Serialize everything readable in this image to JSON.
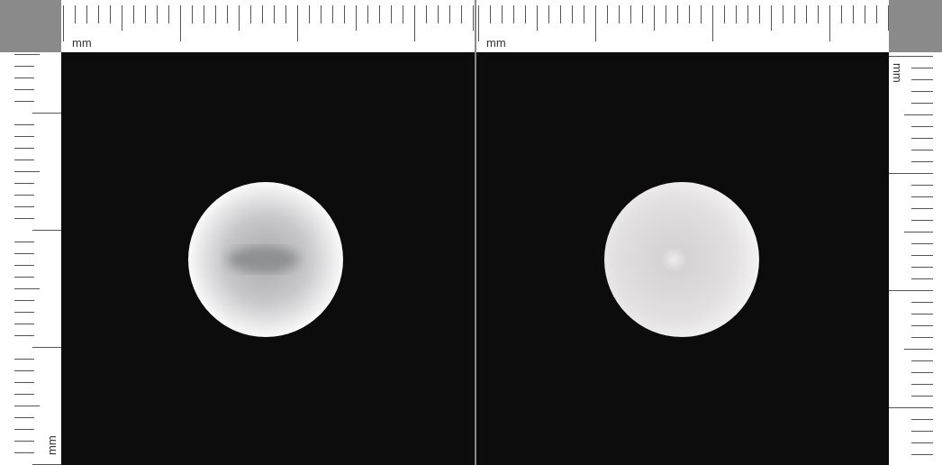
{
  "rulers": {
    "top_left": "mm",
    "top_right": "mm",
    "left": "mm",
    "right": "mm"
  }
}
